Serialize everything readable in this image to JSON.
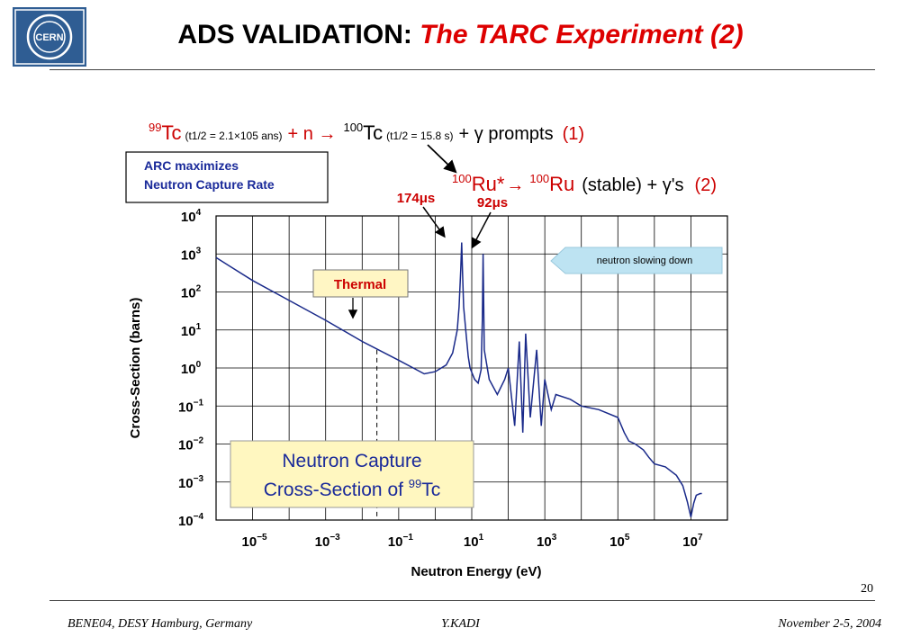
{
  "title": {
    "main": "ADS VALIDATION: ",
    "sub": "The TARC Experiment (2)"
  },
  "logo": {
    "text": "CERN"
  },
  "reaction1": {
    "isotope": "99",
    "element": "Tc",
    "halflife": "(t1/2 = 2.1×105 ans)",
    "plus_n": "+ n →",
    "product_isotope": "100",
    "product_element": "Tc",
    "product_halflife": "(t1/2 = 15.8 s)",
    "prompts": "+ γ prompts",
    "label": "(1)"
  },
  "reaction2": {
    "isotope": "100",
    "element": "Ru*",
    "arrow": "→",
    "product_isotope": "100",
    "product_element": "Ru",
    "rest": "(stable) + γ's",
    "label": "(2)"
  },
  "arc_box": {
    "line1": "ARC maximizes",
    "line2": "Neutron Capture Rate"
  },
  "chart_data": {
    "type": "line",
    "xlabel": "Neutron Energy (eV)",
    "ylabel": "Cross-Section (barns)",
    "x_scale": "log",
    "y_scale": "log",
    "xlim": [
      1e-06,
      100000000.0
    ],
    "ylim": [
      0.0001,
      10000
    ],
    "xticks": [
      "10-5",
      "10-3",
      "10-1",
      "101",
      "103",
      "105",
      "107"
    ],
    "yticks": [
      "10-4",
      "10-3",
      "10-2",
      "10-1",
      "100",
      "101",
      "102",
      "103",
      "104"
    ],
    "grid": true,
    "series": [
      {
        "x": [
          1e-06,
          1e-05,
          0.0001,
          0.001,
          0.01,
          0.1,
          0.5,
          1,
          2,
          3,
          4,
          4.5,
          5,
          5.3,
          5.6,
          6,
          7,
          8,
          9,
          12,
          15,
          18,
          19.5,
          20.5,
          22,
          30,
          50,
          80,
          100,
          150,
          200,
          250,
          300,
          400,
          600,
          800,
          1000,
          1500,
          2000,
          5000,
          10000,
          30000,
          100000,
          150000,
          200000,
          300000,
          500000,
          700000,
          1000000,
          2000000,
          4000000,
          6000000,
          8000000,
          10000000,
          12000000,
          14000000,
          18000000,
          20000000
        ],
        "y": [
          800,
          200,
          60,
          18,
          5,
          1.6,
          0.7,
          0.8,
          1.2,
          2.5,
          10,
          40,
          400,
          2000,
          300,
          40,
          8,
          2,
          1,
          0.5,
          0.4,
          0.9,
          20,
          1000,
          3,
          0.5,
          0.2,
          0.5,
          1,
          0.03,
          5,
          0.02,
          8,
          0.05,
          3,
          0.03,
          0.5,
          0.08,
          0.2,
          0.15,
          0.1,
          0.08,
          0.05,
          0.02,
          0.012,
          0.01,
          0.007,
          0.0045,
          0.003,
          0.0025,
          0.0015,
          0.0008,
          0.0003,
          0.00012,
          0.00028,
          0.00045,
          0.0005,
          0.0005
        ]
      }
    ]
  },
  "annotations": {
    "thermal": "Thermal",
    "peak1": "174μs",
    "peak2": "92μs",
    "slowing": "neutron slowing down",
    "capture_line1": "Neutron Capture",
    "capture_line2_prefix": "Cross-Section of ",
    "capture_iso": "99",
    "capture_el": "Tc"
  },
  "slide_number": "20",
  "footer": {
    "left": "BENE04, DESY Hamburg, Germany",
    "center": "Y.KADI",
    "right": "November 2-5, 2004"
  }
}
